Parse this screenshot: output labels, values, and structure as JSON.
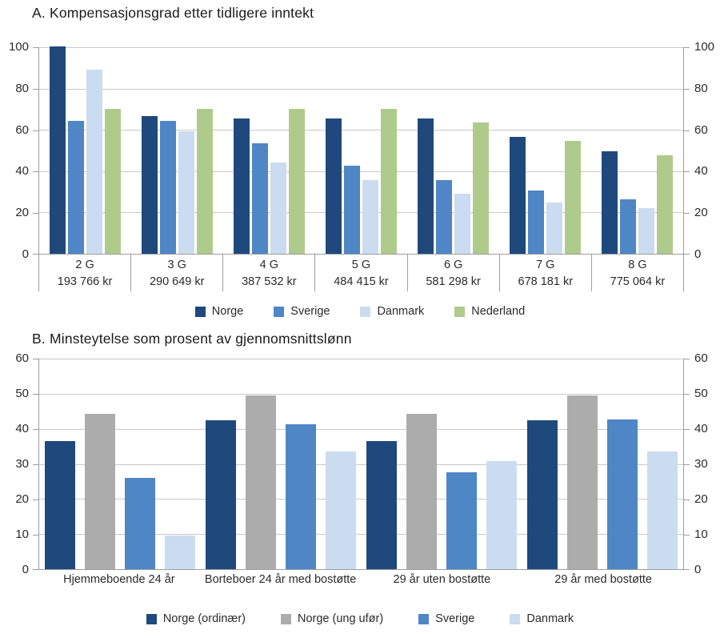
{
  "chart_data": [
    {
      "type": "bar",
      "title": "A. Kompensasjonsgrad etter tidligere inntekt",
      "categories": [
        "2 G",
        "3 G",
        "4 G",
        "5 G",
        "6 G",
        "7 G",
        "8 G"
      ],
      "category_sublabels": [
        "193 766 kr",
        "290 649 kr",
        "387 532 kr",
        "484 415 kr",
        "581 298 kr",
        "678 181 kr",
        "775 064 kr"
      ],
      "series": [
        {
          "name": "Norge",
          "color": "#1F497D",
          "values": [
            100.5,
            66.5,
            65.5,
            65.5,
            65.5,
            56.5,
            49.5
          ]
        },
        {
          "name": "Sverige",
          "color": "#4F86C6",
          "values": [
            64.5,
            64.5,
            53.5,
            42.5,
            35.5,
            30.5,
            26.5
          ]
        },
        {
          "name": "Danmark",
          "color": "#CCDCF0",
          "values": [
            89,
            59.5,
            44,
            35.5,
            29,
            25,
            22
          ]
        },
        {
          "name": "Nederland",
          "color": "#AECB8B",
          "values": [
            70,
            70,
            70,
            70,
            63.5,
            54.5,
            47.5
          ]
        }
      ],
      "ylim": [
        0,
        100
      ],
      "yticks": [
        0,
        20,
        40,
        60,
        80,
        100
      ],
      "grid": true,
      "legend_position": "bottom"
    },
    {
      "type": "bar",
      "title": "B. Minsteytelse som prosent av gjennomsnittslønn",
      "categories": [
        "Hjemmeboende 24 år",
        "Borteboer 24 år med bostøtte",
        "29 år uten bostøtte",
        "29 år med bostøtte"
      ],
      "series": [
        {
          "name": "Norge (ordinær)",
          "color": "#1F497D",
          "values": [
            36.5,
            42.5,
            36.5,
            42.5
          ]
        },
        {
          "name": "Norge (ung ufør)",
          "color": "#ACACAC",
          "values": [
            44.3,
            49.5,
            44.3,
            49.5
          ]
        },
        {
          "name": "Sverige",
          "color": "#4F86C6",
          "values": [
            26,
            41.3,
            27.5,
            42.7
          ]
        },
        {
          "name": "Danmark",
          "color": "#CCDCF0",
          "values": [
            9.5,
            33.5,
            30.8,
            33.5
          ]
        }
      ],
      "ylim": [
        0,
        60
      ],
      "yticks": [
        0,
        10,
        20,
        30,
        40,
        50,
        60
      ],
      "grid": true,
      "legend_position": "bottom"
    }
  ]
}
